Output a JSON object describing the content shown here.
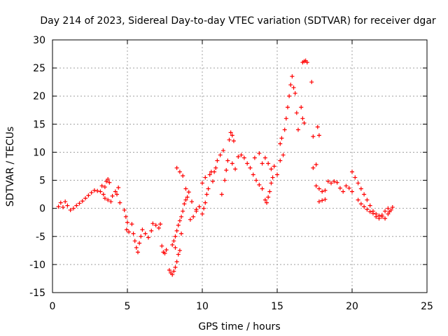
{
  "chart_data": {
    "type": "scatter",
    "title": "Day 214 of 2023, Sidereal Day-to-day VTEC variation (SDTVAR) for receiver dgar",
    "xlabel": "GPS time / hours",
    "ylabel": "SDTVAR / TECUs",
    "xlim": [
      0,
      25
    ],
    "ylim": [
      -15,
      30
    ],
    "xticks": [
      0,
      5,
      10,
      15,
      20,
      25
    ],
    "yticks": [
      -15,
      -10,
      -5,
      0,
      5,
      10,
      15,
      20,
      25,
      30
    ],
    "grid": true,
    "marker": "+",
    "color": "#ff0000",
    "series": [
      {
        "name": "SDTVAR",
        "points": [
          [
            0.4,
            0.3
          ],
          [
            0.55,
            1.0
          ],
          [
            0.7,
            0.2
          ],
          [
            0.85,
            1.2
          ],
          [
            1.0,
            0.5
          ],
          [
            1.2,
            -0.3
          ],
          [
            1.4,
            0.0
          ],
          [
            1.6,
            0.5
          ],
          [
            1.8,
            0.9
          ],
          [
            2.0,
            1.3
          ],
          [
            2.2,
            1.8
          ],
          [
            2.4,
            2.3
          ],
          [
            2.6,
            2.8
          ],
          [
            2.8,
            3.2
          ],
          [
            3.0,
            3.1
          ],
          [
            3.2,
            3.0
          ],
          [
            3.4,
            2.5
          ],
          [
            3.5,
            3.8
          ],
          [
            3.6,
            4.8
          ],
          [
            3.7,
            5.2
          ],
          [
            3.8,
            4.6
          ],
          [
            3.5,
            1.8
          ],
          [
            3.7,
            1.5
          ],
          [
            3.9,
            1.2
          ],
          [
            4.0,
            2.2
          ],
          [
            4.2,
            3.0
          ],
          [
            4.4,
            3.7
          ],
          [
            4.3,
            2.5
          ],
          [
            4.5,
            1.0
          ],
          [
            3.3,
            4.0
          ],
          [
            4.8,
            -0.3
          ],
          [
            4.9,
            -1.5
          ],
          [
            5.0,
            -2.5
          ],
          [
            4.95,
            -3.8
          ],
          [
            5.1,
            -4.2
          ],
          [
            5.3,
            -2.8
          ],
          [
            5.4,
            -4.5
          ],
          [
            5.5,
            -5.8
          ],
          [
            5.6,
            -7.0
          ],
          [
            5.7,
            -7.8
          ],
          [
            5.8,
            -6.2
          ],
          [
            5.9,
            -5.0
          ],
          [
            6.0,
            -3.8
          ],
          [
            6.2,
            -4.5
          ],
          [
            6.4,
            -5.2
          ],
          [
            6.6,
            -4.0
          ],
          [
            6.7,
            -2.7
          ],
          [
            6.9,
            -3.0
          ],
          [
            7.1,
            -3.5
          ],
          [
            7.2,
            -2.8
          ],
          [
            7.3,
            -6.7
          ],
          [
            7.4,
            -7.8
          ],
          [
            7.5,
            -8.0
          ],
          [
            7.6,
            -7.4
          ],
          [
            7.8,
            -11.0
          ],
          [
            7.9,
            -11.5
          ],
          [
            8.0,
            -11.8
          ],
          [
            8.1,
            -11.2
          ],
          [
            8.2,
            -10.5
          ],
          [
            8.3,
            -9.5
          ],
          [
            8.4,
            -8.2
          ],
          [
            8.5,
            -7.5
          ],
          [
            8.0,
            -6.5
          ],
          [
            8.1,
            -5.8
          ],
          [
            8.2,
            -5.0
          ],
          [
            8.3,
            -4.0
          ],
          [
            8.4,
            -3.0
          ],
          [
            8.5,
            -2.2
          ],
          [
            8.6,
            -1.5
          ],
          [
            8.7,
            -0.5
          ],
          [
            8.8,
            0.8
          ],
          [
            8.9,
            1.5
          ],
          [
            9.0,
            2.0
          ],
          [
            8.2,
            -7.0
          ],
          [
            8.6,
            -4.5
          ],
          [
            9.2,
            -2.0
          ],
          [
            9.4,
            -1.5
          ],
          [
            9.6,
            -0.5
          ],
          [
            9.8,
            0.3
          ],
          [
            8.3,
            7.2
          ],
          [
            8.5,
            6.5
          ],
          [
            8.7,
            5.8
          ],
          [
            8.9,
            3.5
          ],
          [
            9.1,
            2.9
          ],
          [
            9.3,
            1.2
          ],
          [
            9.6,
            -0.2
          ],
          [
            10.0,
            -1.0
          ],
          [
            10.1,
            0.0
          ],
          [
            10.2,
            1.0
          ],
          [
            10.3,
            2.5
          ],
          [
            10.4,
            3.5
          ],
          [
            10.0,
            4.5
          ],
          [
            10.2,
            5.5
          ],
          [
            10.5,
            6.0
          ],
          [
            10.6,
            6.5
          ],
          [
            10.7,
            4.8
          ],
          [
            10.9,
            7.2
          ],
          [
            11.0,
            8.5
          ],
          [
            11.2,
            9.5
          ],
          [
            11.4,
            10.3
          ],
          [
            10.8,
            6.5
          ],
          [
            11.3,
            2.5
          ],
          [
            11.5,
            5.0
          ],
          [
            11.6,
            6.8
          ],
          [
            11.7,
            8.5
          ],
          [
            11.8,
            12.2
          ],
          [
            11.9,
            13.5
          ],
          [
            12.0,
            13.0
          ],
          [
            12.1,
            12.0
          ],
          [
            12.0,
            8.0
          ],
          [
            12.2,
            7.0
          ],
          [
            12.4,
            9.2
          ],
          [
            12.6,
            9.5
          ],
          [
            12.8,
            9.0
          ],
          [
            13.0,
            8.0
          ],
          [
            13.2,
            7.2
          ],
          [
            13.4,
            6.0
          ],
          [
            13.6,
            5.0
          ],
          [
            13.8,
            4.2
          ],
          [
            14.0,
            3.5
          ],
          [
            14.2,
            1.5
          ],
          [
            14.3,
            1.0
          ],
          [
            14.4,
            2.0
          ],
          [
            14.5,
            3.0
          ],
          [
            14.6,
            4.5
          ],
          [
            14.7,
            5.5
          ],
          [
            13.5,
            9.0
          ],
          [
            13.8,
            9.8
          ],
          [
            14.0,
            8.0
          ],
          [
            14.2,
            9.0
          ],
          [
            14.4,
            8.0
          ],
          [
            14.6,
            7.0
          ],
          [
            14.8,
            7.5
          ],
          [
            15.0,
            6.0
          ],
          [
            15.2,
            8.5
          ],
          [
            15.4,
            9.5
          ],
          [
            15.2,
            11.5
          ],
          [
            15.3,
            12.5
          ],
          [
            15.5,
            14.0
          ],
          [
            15.6,
            16.0
          ],
          [
            15.7,
            18.0
          ],
          [
            15.8,
            20.0
          ],
          [
            15.9,
            22.0
          ],
          [
            16.0,
            23.5
          ],
          [
            16.1,
            21.5
          ],
          [
            16.2,
            20.5
          ],
          [
            16.3,
            17.0
          ],
          [
            16.4,
            14.0
          ],
          [
            16.6,
            18.0
          ],
          [
            16.7,
            16.0
          ],
          [
            16.8,
            15.2
          ],
          [
            16.7,
            26.0
          ],
          [
            16.8,
            26.2
          ],
          [
            16.9,
            26.3
          ],
          [
            17.0,
            26.0
          ],
          [
            17.3,
            22.5
          ],
          [
            17.4,
            12.8
          ],
          [
            17.4,
            7.2
          ],
          [
            17.6,
            7.8
          ],
          [
            17.7,
            14.5
          ],
          [
            17.8,
            13.0
          ],
          [
            17.6,
            4.0
          ],
          [
            17.8,
            3.5
          ],
          [
            18.0,
            3.0
          ],
          [
            18.2,
            3.2
          ],
          [
            18.4,
            4.8
          ],
          [
            18.6,
            4.5
          ],
          [
            18.8,
            4.8
          ],
          [
            19.0,
            4.6
          ],
          [
            17.8,
            1.2
          ],
          [
            18.0,
            1.4
          ],
          [
            18.2,
            1.6
          ],
          [
            19.2,
            3.6
          ],
          [
            19.4,
            3.0
          ],
          [
            19.6,
            4.0
          ],
          [
            19.8,
            3.6
          ],
          [
            20.0,
            3.0
          ],
          [
            20.0,
            6.5
          ],
          [
            20.2,
            5.5
          ],
          [
            20.4,
            4.5
          ],
          [
            20.6,
            3.5
          ],
          [
            20.8,
            2.5
          ],
          [
            21.0,
            1.5
          ],
          [
            21.2,
            0.5
          ],
          [
            21.4,
            -0.5
          ],
          [
            21.6,
            -1.0
          ],
          [
            21.8,
            -1.3
          ],
          [
            22.0,
            -1.5
          ],
          [
            22.2,
            -0.5
          ],
          [
            22.4,
            0.0
          ],
          [
            22.6,
            -0.3
          ],
          [
            22.7,
            0.2
          ],
          [
            20.4,
            1.5
          ],
          [
            20.6,
            0.8
          ],
          [
            20.8,
            0.3
          ],
          [
            21.0,
            -0.2
          ],
          [
            21.2,
            -0.6
          ],
          [
            21.4,
            -0.9
          ],
          [
            21.6,
            -1.5
          ],
          [
            21.8,
            -1.8
          ],
          [
            22.0,
            -1.2
          ],
          [
            22.2,
            -1.8
          ],
          [
            22.4,
            -1.0
          ],
          [
            22.5,
            -0.6
          ]
        ]
      }
    ]
  }
}
